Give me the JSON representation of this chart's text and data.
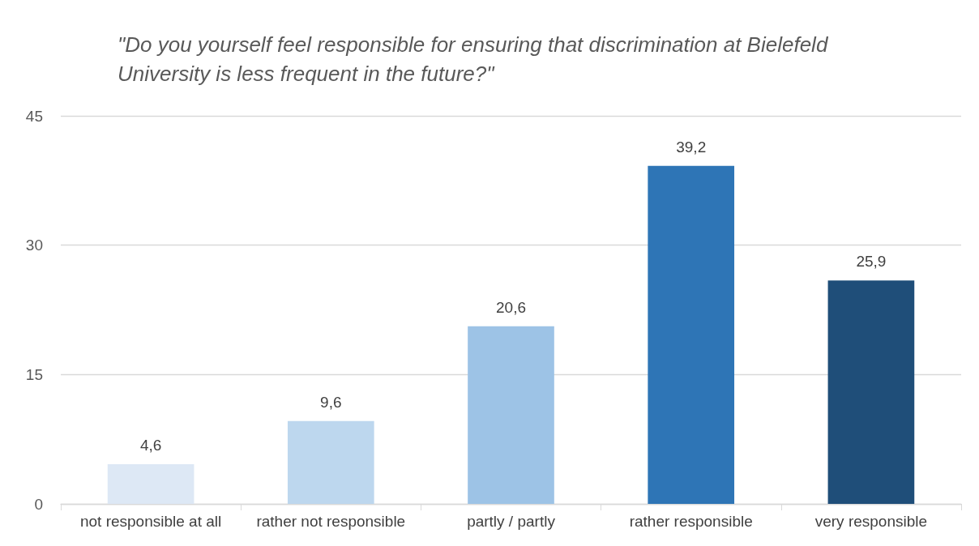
{
  "chart_data": {
    "type": "bar",
    "title": "\"Do you yourself feel responsible for ensuring that discrimination at Bielefeld University is less frequent in the future?\"",
    "categories": [
      "not responsible at all",
      "rather not responsible",
      "partly / partly",
      "rather responsible",
      "very responsible"
    ],
    "values": [
      4.6,
      9.6,
      20.6,
      39.2,
      25.9
    ],
    "colors": [
      "#dde8f5",
      "#bdd7ee",
      "#9dc3e6",
      "#2e75b6",
      "#1f4e79"
    ],
    "value_labels": [
      "4,6",
      "9,6",
      "20,6",
      "39,2",
      "25,9"
    ],
    "ylim": [
      0,
      45
    ],
    "yticks": [
      0,
      15,
      30,
      45
    ],
    "grid": "y"
  }
}
